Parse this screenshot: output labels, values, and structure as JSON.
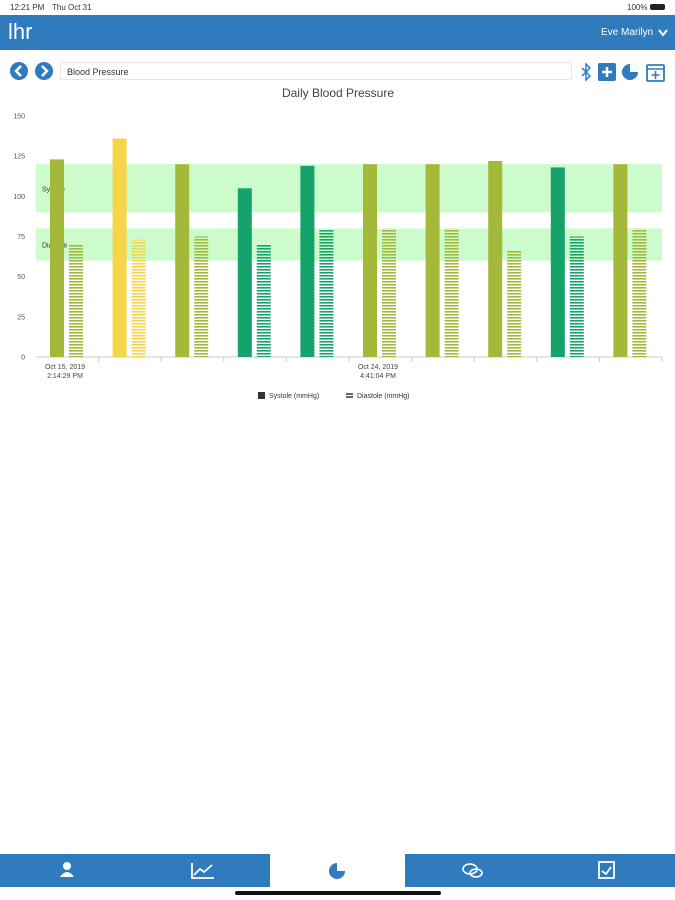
{
  "status_bar": {
    "time": "12:21 PM",
    "date": "Thu Oct 31",
    "battery": "100%"
  },
  "header": {
    "logo": "lhr",
    "user": "Eve Marilyn"
  },
  "toolbar": {
    "selected_metric": "Blood Pressure"
  },
  "chart_data": {
    "type": "bar",
    "title": "Daily Blood Pressure",
    "categories": [
      "Oct 15, 2019 2:14:29 PM",
      null,
      null,
      null,
      null,
      "Oct 24, 2019 4:41:04 PM",
      null,
      null,
      null,
      null
    ],
    "series": [
      {
        "name": "Systole (mmHg)",
        "color": "#333333",
        "pattern": "solid",
        "values": [
          123,
          136,
          120,
          105,
          119,
          120,
          120,
          122,
          118,
          120
        ]
      },
      {
        "name": "Diastole (mmHg)",
        "color": "#333333",
        "pattern": "hatched",
        "values": [
          70,
          73,
          75,
          70,
          79,
          80,
          80,
          66,
          75,
          80
        ]
      }
    ],
    "point_colors": [
      "#a4b83a",
      "#f7d548",
      "#a4b83a",
      "#16a36b",
      "#16a36b",
      "#a4b83a",
      "#a4b83a",
      "#a4b83a",
      "#16a36b",
      "#a4b83a"
    ],
    "bands": [
      {
        "label": "Systole",
        "range": [
          90,
          120
        ],
        "color": "#ccfccc"
      },
      {
        "label": "Diastole",
        "range": [
          60,
          80
        ],
        "color": "#ccfccc"
      }
    ],
    "ylim": [
      0,
      150
    ],
    "yticks": [
      0,
      25,
      50,
      75,
      100,
      125,
      150
    ],
    "grid": false
  }
}
